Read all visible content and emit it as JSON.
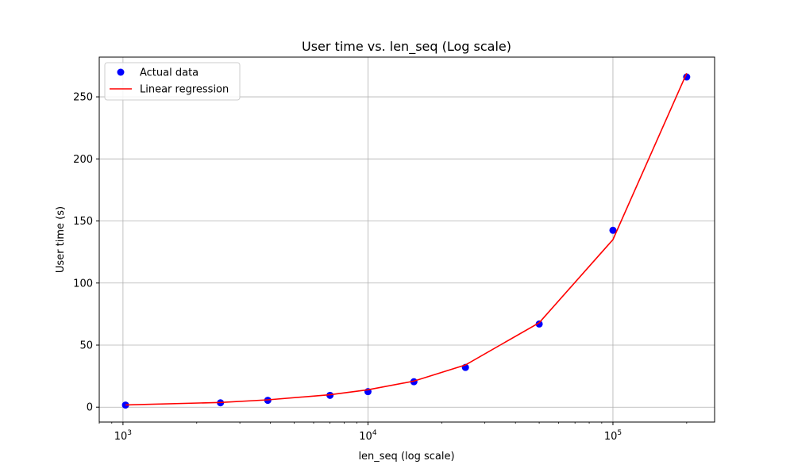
{
  "chart_data": {
    "type": "scatter",
    "title": "User time vs. len_seq (Log scale)",
    "xlabel": "len_seq (log scale)",
    "ylabel": "User time (s)",
    "x_scale": "log",
    "xlim": [
      800,
      260000
    ],
    "ylim": [
      -12,
      282
    ],
    "x_ticks": [
      {
        "value": 1000,
        "base": "10",
        "exp": "3"
      },
      {
        "value": 10000,
        "base": "10",
        "exp": "4"
      },
      {
        "value": 100000,
        "base": "10",
        "exp": "5"
      }
    ],
    "y_ticks": [
      0,
      50,
      100,
      150,
      200,
      250
    ],
    "grid": true,
    "legend_position": "top-left",
    "series": [
      {
        "name": "Actual data",
        "kind": "scatter",
        "color": "#0000ff",
        "x": [
          1024,
          2500,
          3900,
          7000,
          10000,
          15400,
          25000,
          50000,
          100000,
          200000
        ],
        "y": [
          1.7,
          3.5,
          5.5,
          9.5,
          12.5,
          20.5,
          32,
          67,
          142.5,
          266
        ]
      },
      {
        "name": "Linear regression",
        "kind": "line",
        "color": "#ff0000",
        "x": [
          1024,
          2500,
          3900,
          7000,
          10000,
          15400,
          25000,
          50000,
          100000,
          200000
        ],
        "y": [
          1.8,
          3.8,
          5.9,
          10,
          14,
          21,
          34,
          68,
          135,
          269
        ]
      }
    ]
  }
}
